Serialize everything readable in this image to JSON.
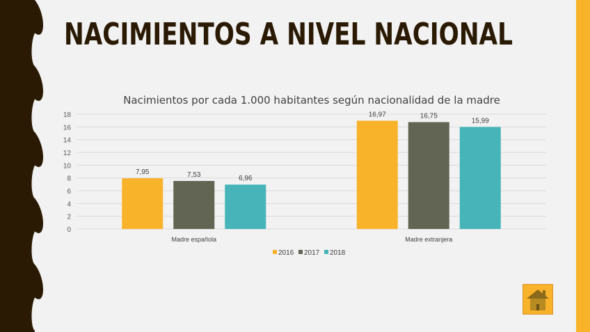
{
  "slide_title": "NACIMIENTOS A NIVEL NACIONAL",
  "home_button": {
    "icon": "home-icon"
  },
  "colors": {
    "2016": "#f9b32a",
    "2017": "#626553",
    "2018": "#46b4b8",
    "dark": "#2a1a04"
  },
  "chart_data": {
    "type": "bar",
    "title": "Nacimientos por cada 1.000 habitantes según nacionalidad de la madre",
    "categories": [
      "Madre española",
      "Madre extranjera"
    ],
    "series": [
      {
        "name": "2016",
        "values": [
          7.95,
          16.97
        ],
        "labels": [
          "7,95",
          "16,97"
        ]
      },
      {
        "name": "2017",
        "values": [
          7.53,
          16.75
        ],
        "labels": [
          "7,53",
          "16,75"
        ]
      },
      {
        "name": "2018",
        "values": [
          6.96,
          15.99
        ],
        "labels": [
          "6,96",
          "15,99"
        ]
      }
    ],
    "ylim": [
      0,
      18
    ],
    "yticks": [
      "0",
      "2",
      "4",
      "6",
      "8",
      "10",
      "12",
      "14",
      "16",
      "18"
    ],
    "grid": true,
    "legend": "bottom",
    "xlabel": "",
    "ylabel": ""
  }
}
